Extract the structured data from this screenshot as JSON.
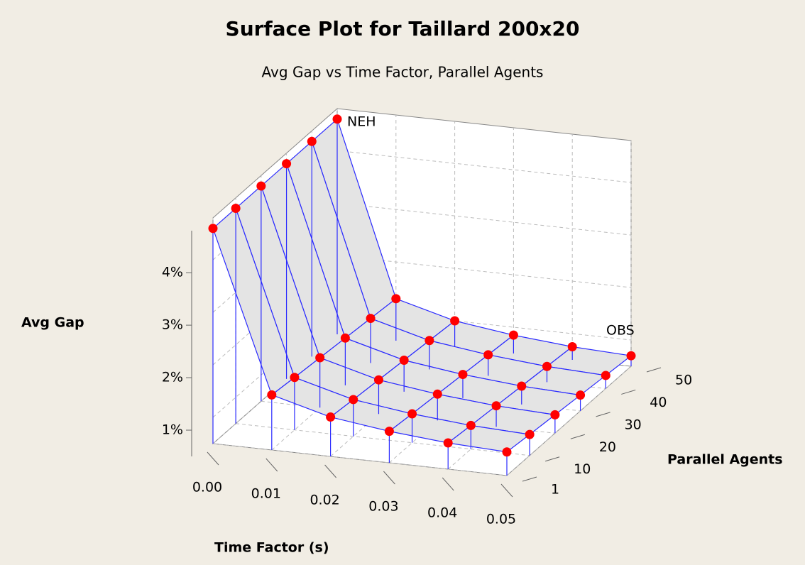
{
  "chart_data": {
    "type": "surface",
    "title": "Surface Plot for Taillard 200x20",
    "subtitle": "Avg Gap vs Time Factor, Parallel Agents",
    "x_label": "Time Factor (s)",
    "y_label": "Parallel Agents",
    "z_label": "Avg Gap",
    "x": [
      0,
      0.01,
      0.02,
      0.03,
      0.04,
      0.05
    ],
    "y": [
      1,
      10,
      20,
      30,
      40,
      50
    ],
    "z": [
      [
        4.6,
        4.6,
        4.6,
        4.6,
        4.6,
        4.6
      ],
      [
        1.55,
        1.5,
        1.45,
        1.4,
        1.35,
        1.3
      ],
      [
        1.25,
        1.2,
        1.15,
        1.1,
        1.05,
        1.0
      ],
      [
        1.1,
        1.05,
        1.0,
        0.95,
        0.9,
        0.85
      ],
      [
        1.0,
        0.95,
        0.9,
        0.85,
        0.8,
        0.75
      ],
      [
        0.95,
        0.9,
        0.85,
        0.8,
        0.75,
        0.7
      ]
    ],
    "xlim": [
      0,
      0.05
    ],
    "ylim": [
      1,
      50
    ],
    "zlim": [
      0.5,
      4.8
    ],
    "xticks": [
      {
        "value": 0,
        "label": "0.00"
      },
      0.01,
      0.02,
      0.03,
      0.04,
      0.05
    ],
    "yticks": [
      1,
      10,
      20,
      30,
      40,
      50
    ],
    "zticks": [
      {
        "value": 1,
        "label": "1%"
      },
      {
        "value": 2,
        "label": "2%"
      },
      {
        "value": 3,
        "label": "3%"
      },
      {
        "value": 4,
        "label": "4%"
      }
    ],
    "annotations": [
      {
        "text": "NEH"
      },
      {
        "text": "OBS"
      }
    ],
    "surface_color": "#e4e4e4",
    "line_color": "#2a2aff",
    "point_color": "#ff0000",
    "grid": true
  }
}
